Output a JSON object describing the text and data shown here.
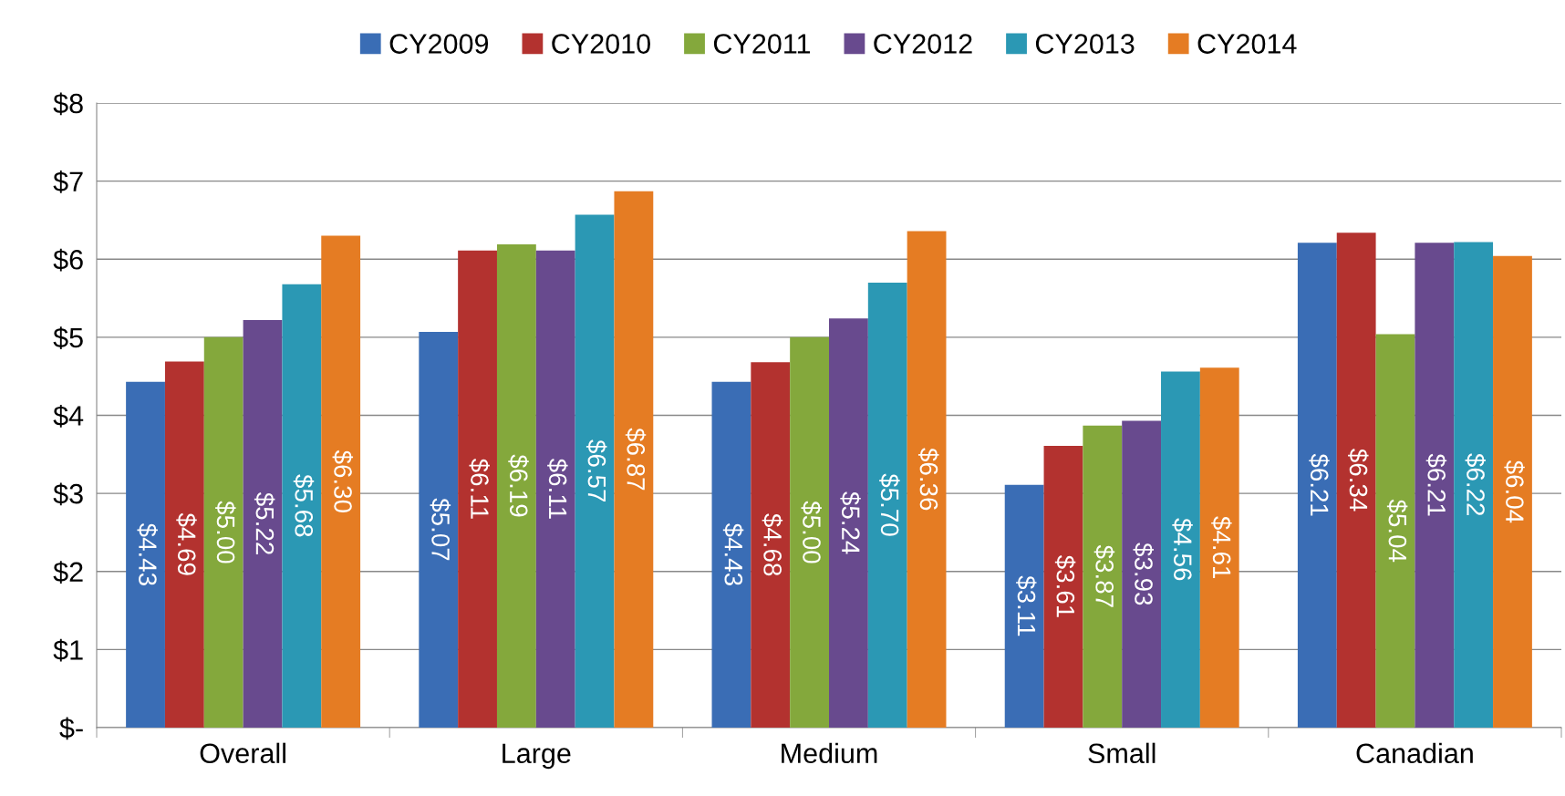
{
  "chart_data": {
    "type": "bar",
    "categories": [
      "Overall",
      "Large",
      "Medium",
      "Small",
      "Canadian"
    ],
    "series": [
      {
        "name": "CY2009",
        "color": "#3a6db5",
        "values": [
          4.43,
          5.07,
          4.43,
          3.11,
          6.21
        ],
        "value_labels": [
          "$4.43",
          "$5.07",
          "$4.43",
          "$3.11",
          "$6.21"
        ]
      },
      {
        "name": "CY2010",
        "color": "#b3322f",
        "values": [
          4.69,
          6.11,
          4.68,
          3.61,
          6.34
        ],
        "value_labels": [
          "$4.69",
          "$6.11",
          "$4.68",
          "$3.61",
          "$6.34"
        ]
      },
      {
        "name": "CY2011",
        "color": "#84a83c",
        "values": [
          5.0,
          6.19,
          5.0,
          3.87,
          5.04
        ],
        "value_labels": [
          "$5.00",
          "$6.19",
          "$5.00",
          "$3.87",
          "$5.04"
        ]
      },
      {
        "name": "CY2012",
        "color": "#684a8e",
        "values": [
          5.22,
          6.11,
          5.24,
          3.93,
          6.21
        ],
        "value_labels": [
          "$5.22",
          "$6.11",
          "$5.24",
          "$3.93",
          "$6.21"
        ]
      },
      {
        "name": "CY2013",
        "color": "#2b98b4",
        "values": [
          5.68,
          6.57,
          5.7,
          4.56,
          6.22
        ],
        "value_labels": [
          "$5.68",
          "$6.57",
          "$5.70",
          "$4.56",
          "$6.22"
        ]
      },
      {
        "name": "CY2014",
        "color": "#e57c23",
        "values": [
          6.3,
          6.87,
          6.36,
          4.61,
          6.04
        ],
        "value_labels": [
          "$6.30",
          "$6.87",
          "$6.36",
          "$4.61",
          "$6.04"
        ]
      }
    ],
    "ylim": [
      0,
      8
    ],
    "yticks": [
      {
        "value": 0,
        "label": "$-"
      },
      {
        "value": 1,
        "label": "$1"
      },
      {
        "value": 2,
        "label": "$2"
      },
      {
        "value": 3,
        "label": "$3"
      },
      {
        "value": 4,
        "label": "$4"
      },
      {
        "value": 5,
        "label": "$5"
      },
      {
        "value": 6,
        "label": "$6"
      },
      {
        "value": 7,
        "label": "$7"
      },
      {
        "value": 8,
        "label": "$8"
      }
    ],
    "grid": "y",
    "legend": "top"
  }
}
